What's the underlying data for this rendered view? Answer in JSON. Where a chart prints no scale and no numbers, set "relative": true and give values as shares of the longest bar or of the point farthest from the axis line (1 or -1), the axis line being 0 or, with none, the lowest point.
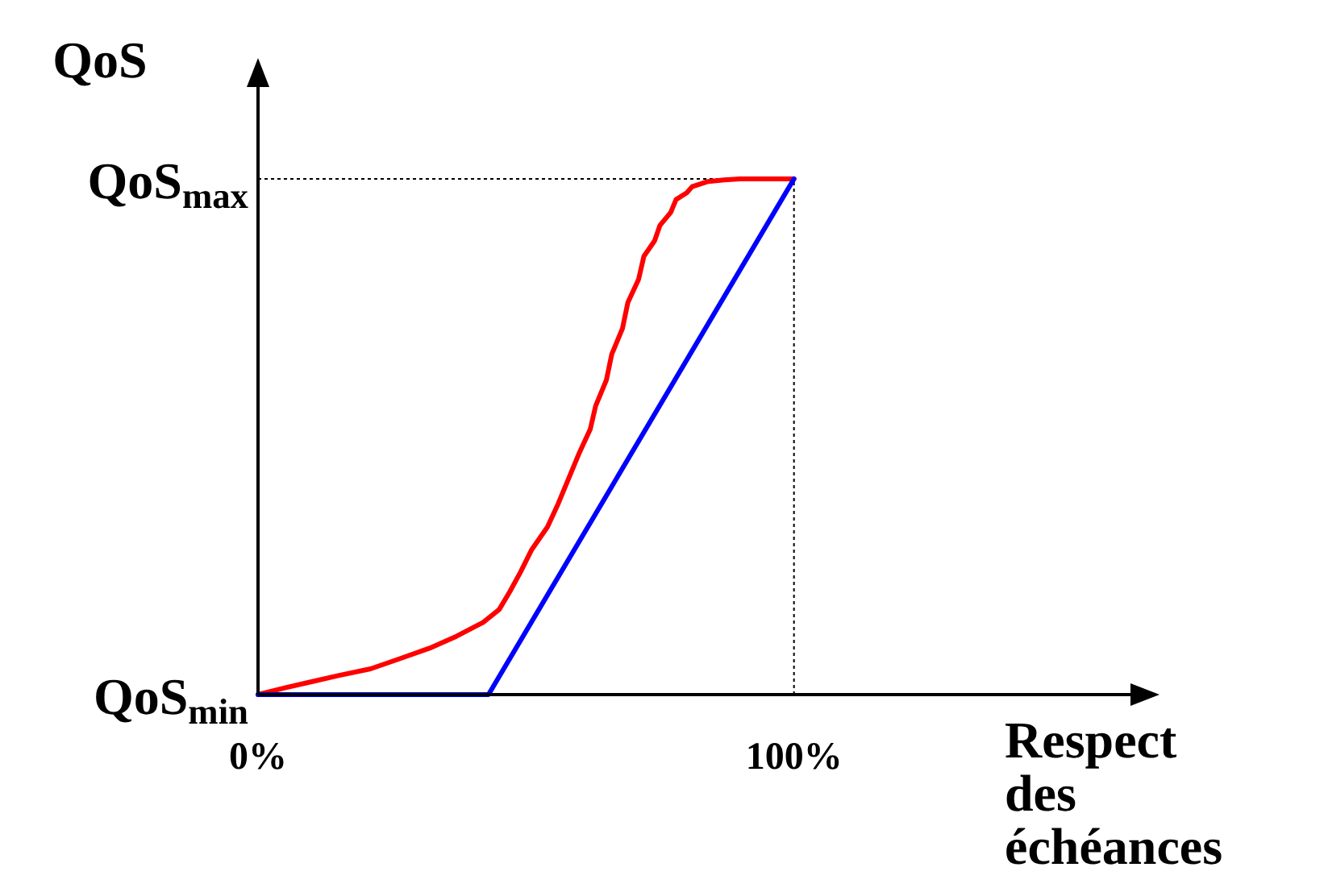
{
  "chart_data": {
    "type": "line",
    "xlabel": "Respect des échéances",
    "ylabel": "QoS",
    "relative": true,
    "xlim": [
      0,
      167
    ],
    "xticks": [
      {
        "value": 0,
        "label": "0%"
      },
      {
        "value": 100,
        "label": "100%"
      }
    ],
    "annotations": [
      {
        "text": "QoS$_{max}$",
        "x": 0,
        "y": 1
      },
      {
        "text": "QoS$_{min}$",
        "x": 0,
        "y": 0
      }
    ],
    "series": [
      {
        "color": "#ff0000",
        "x": [
          0,
          5,
          10,
          15,
          21,
          26,
          32,
          37,
          42,
          45,
          47,
          49,
          51,
          54,
          56,
          58,
          60,
          62,
          63,
          65,
          66,
          68,
          69,
          71,
          72,
          74,
          75,
          77,
          78,
          80,
          81,
          84,
          87,
          90,
          95,
          100
        ],
        "values": [
          0,
          0.013,
          0.025,
          0.037,
          0.05,
          0.068,
          0.09,
          0.113,
          0.14,
          0.165,
          0.2,
          0.238,
          0.28,
          0.325,
          0.37,
          0.42,
          0.47,
          0.515,
          0.56,
          0.61,
          0.66,
          0.71,
          0.76,
          0.805,
          0.85,
          0.88,
          0.91,
          0.935,
          0.96,
          0.973,
          0.985,
          0.995,
          0.998,
          1,
          1,
          1
        ]
      },
      {
        "color": "#0000ff",
        "x": [
          0,
          43,
          100
        ],
        "values": [
          0,
          0,
          1
        ]
      }
    ],
    "ref_lines": [
      {
        "axis": "x",
        "value": 100,
        "line_style": "dotted",
        "color": "#000000"
      },
      {
        "axis": "y",
        "value": 1,
        "line_style": "dotted",
        "color": "#000000"
      }
    ],
    "line_style": "solid",
    "marker": "none",
    "grid": false
  }
}
